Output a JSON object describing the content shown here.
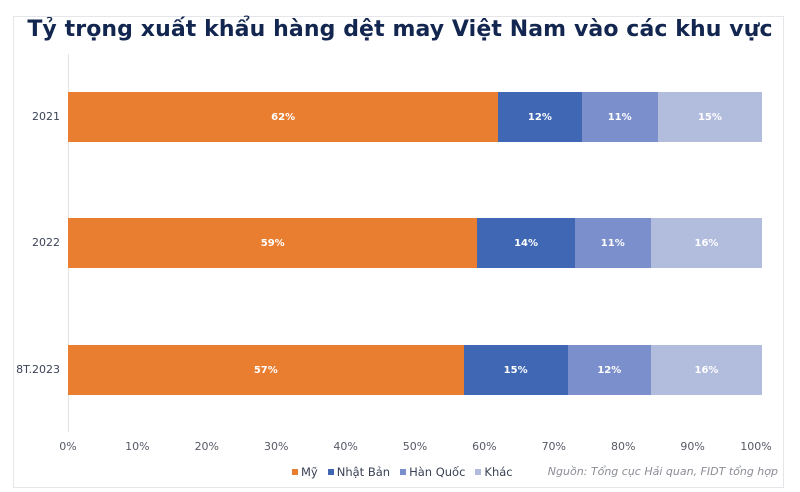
{
  "header": {
    "title": "Tỷ trọng xuất khẩu hàng dệt may Việt Nam vào các khu vực"
  },
  "colors": {
    "my": "#e97e31",
    "nhat_ban": "#3f67b3",
    "han_quoc": "#7b8fcc",
    "khac": "#b2bcdd",
    "title": "#12264f"
  },
  "rows": [
    {
      "label": "2021",
      "segments": [
        {
          "key": "my",
          "value": 62,
          "text": "62%"
        },
        {
          "key": "nhat_ban",
          "value": 12,
          "text": "12%"
        },
        {
          "key": "han_quoc",
          "value": 11,
          "text": "11%"
        },
        {
          "key": "khac",
          "value": 15,
          "text": "15%"
        }
      ]
    },
    {
      "label": "2022",
      "segments": [
        {
          "key": "my",
          "value": 59,
          "text": "59%"
        },
        {
          "key": "nhat_ban",
          "value": 14,
          "text": "14%"
        },
        {
          "key": "han_quoc",
          "value": 11,
          "text": "11%"
        },
        {
          "key": "khac",
          "value": 16,
          "text": "16%"
        }
      ]
    },
    {
      "label": "8T.2023",
      "segments": [
        {
          "key": "my",
          "value": 57,
          "text": "57%"
        },
        {
          "key": "nhat_ban",
          "value": 15,
          "text": "15%"
        },
        {
          "key": "han_quoc",
          "value": 12,
          "text": "12%"
        },
        {
          "key": "khac",
          "value": 16,
          "text": "16%"
        }
      ]
    }
  ],
  "x_axis": {
    "ticks": [
      "0%",
      "10%",
      "20%",
      "30%",
      "40%",
      "50%",
      "60%",
      "70%",
      "80%",
      "90%",
      "100%"
    ]
  },
  "legend": [
    {
      "key": "my",
      "label": "Mỹ"
    },
    {
      "key": "nhat_ban",
      "label": "Nhật Bản"
    },
    {
      "key": "han_quoc",
      "label": "Hàn Quốc"
    },
    {
      "key": "khac",
      "label": "Khác"
    }
  ],
  "footer": {
    "source": "Nguồn: Tổng cục Hải quan, FIDT tổng hợp"
  },
  "chart_data": {
    "type": "bar",
    "orientation": "horizontal",
    "stacked": true,
    "title": "Tỷ trọng xuất khẩu hàng dệt may Việt Nam vào các khu vực",
    "categories": [
      "2021",
      "2022",
      "8T.2023"
    ],
    "series": [
      {
        "name": "Mỹ",
        "values": [
          62,
          59,
          57
        ]
      },
      {
        "name": "Nhật Bản",
        "values": [
          12,
          14,
          15
        ]
      },
      {
        "name": "Hàn Quốc",
        "values": [
          11,
          11,
          12
        ]
      },
      {
        "name": "Khác",
        "values": [
          15,
          16,
          16
        ]
      }
    ],
    "xlabel": "",
    "ylabel": "",
    "xlim": [
      0,
      100
    ],
    "x_tick_labels": [
      "0%",
      "10%",
      "20%",
      "30%",
      "40%",
      "50%",
      "60%",
      "70%",
      "80%",
      "90%",
      "100%"
    ],
    "data_labels": true,
    "legend_position": "bottom",
    "grid": false,
    "annotation": "Nguồn: Tổng cục Hải quan, FIDT tổng hợp"
  }
}
